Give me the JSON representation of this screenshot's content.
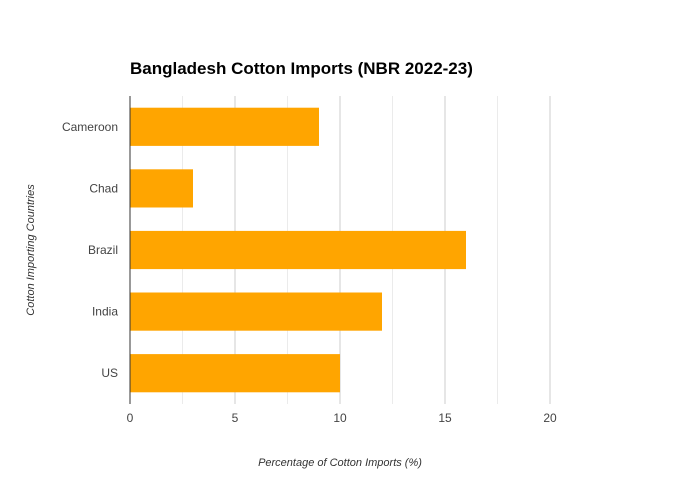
{
  "chart_data": {
    "type": "bar",
    "orientation": "horizontal",
    "title": "Bangladesh Cotton Imports (NBR 2022-23)",
    "xlabel": "Percentage of Cotton Imports (%)",
    "ylabel": "Cotton Importing Countries",
    "categories": [
      "Cameroon",
      "Chad",
      "Brazil",
      "India",
      "US"
    ],
    "values": [
      9,
      3,
      16,
      12,
      10
    ],
    "xlim": [
      0,
      22
    ],
    "xticks": [
      0,
      5,
      10,
      15,
      20
    ],
    "xtick_labels": [
      "0",
      "5",
      "10",
      "15",
      "20"
    ],
    "grid": "vertical",
    "bar_color": "#ffa500",
    "legend": "none"
  }
}
